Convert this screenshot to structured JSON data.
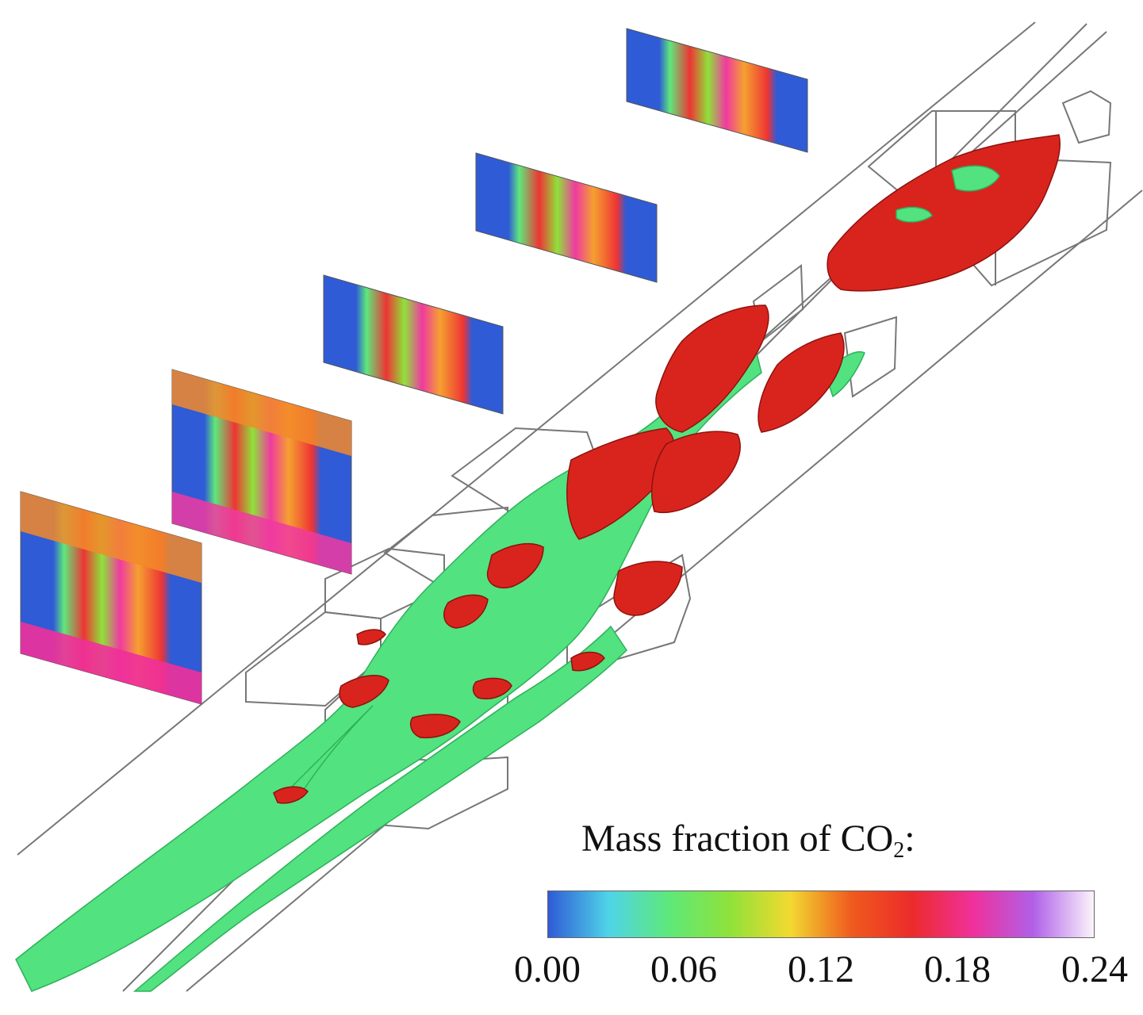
{
  "legend": {
    "title": "Mass fraction of CO",
    "title_subscript": "2",
    "title_suffix": ":",
    "ticks": [
      "0.00",
      "0.06",
      "0.12",
      "0.18",
      "0.24"
    ],
    "range": [
      0.0,
      0.24
    ],
    "colormap": [
      "#2f5bd6",
      "#4fd4e8",
      "#5ee87a",
      "#8fe23a",
      "#f2d930",
      "#ef5a1e",
      "#ec2b2b",
      "#f0309a",
      "#b060e8",
      "#fbf4fb"
    ]
  },
  "colors": {
    "jet_green": "#52e27f",
    "flame_red": "#d9241e",
    "wireframe": "#777777"
  }
}
